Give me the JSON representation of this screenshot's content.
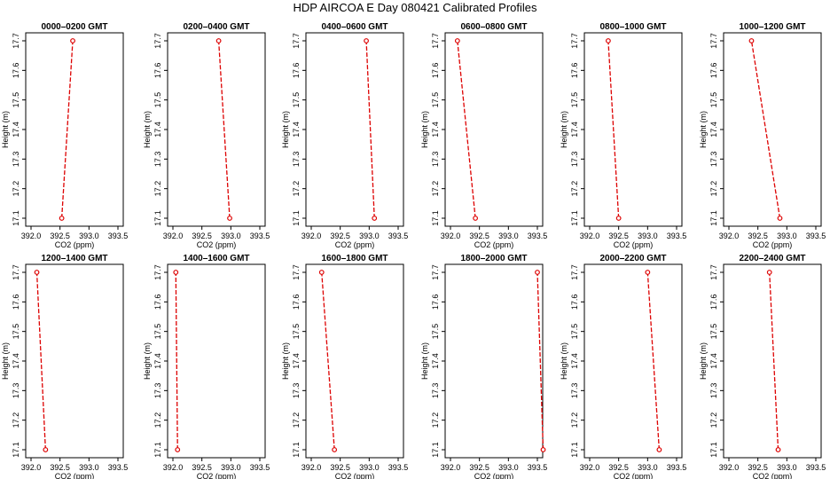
{
  "page": {
    "title": "HDP  AIRCOA E  Day 080421  Calibrated Profiles"
  },
  "colors": {
    "series": "#dd0000",
    "axis": "#000000"
  },
  "chart_data": [
    {
      "type": "line",
      "title": "0000–0200 GMT",
      "xlabel": "CO2 (ppm)",
      "ylabel": "Height (m)",
      "xlim": [
        392.0,
        393.5
      ],
      "ylim": [
        17.1,
        17.7
      ],
      "xticks": [
        "392.0",
        "392.5",
        "393.0",
        "393.5"
      ],
      "yticks": [
        "17.1",
        "17.2",
        "17.3",
        "17.4",
        "17.5",
        "17.6",
        "17.7"
      ],
      "grid": false,
      "x": [
        392.53,
        392.72
      ],
      "y": [
        17.1,
        17.7
      ]
    },
    {
      "type": "line",
      "title": "0200–0400 GMT",
      "xlabel": "CO2 (ppm)",
      "ylabel": "Height (m)",
      "xlim": [
        392.0,
        393.5
      ],
      "ylim": [
        17.1,
        17.7
      ],
      "xticks": [
        "392.0",
        "392.5",
        "393.0",
        "393.5"
      ],
      "yticks": [
        "17.1",
        "17.2",
        "17.3",
        "17.4",
        "17.5",
        "17.6",
        "17.7"
      ],
      "grid": false,
      "x": [
        392.98,
        392.79
      ],
      "y": [
        17.1,
        17.7
      ]
    },
    {
      "type": "line",
      "title": "0400–0600 GMT",
      "xlabel": "CO2 (ppm)",
      "ylabel": "Height (m)",
      "xlim": [
        392.0,
        393.5
      ],
      "ylim": [
        17.1,
        17.7
      ],
      "xticks": [
        "392.0",
        "392.5",
        "393.0",
        "393.5"
      ],
      "yticks": [
        "17.1",
        "17.2",
        "17.3",
        "17.4",
        "17.5",
        "17.6",
        "17.7"
      ],
      "grid": false,
      "x": [
        393.09,
        392.95
      ],
      "y": [
        17.1,
        17.7
      ]
    },
    {
      "type": "line",
      "title": "0600–0800 GMT",
      "xlabel": "CO2 (ppm)",
      "ylabel": "Height (m)",
      "xlim": [
        392.0,
        393.5
      ],
      "ylim": [
        17.1,
        17.7
      ],
      "xticks": [
        "392.0",
        "392.5",
        "393.0",
        "393.5"
      ],
      "yticks": [
        "17.1",
        "17.2",
        "17.3",
        "17.4",
        "17.5",
        "17.6",
        "17.7"
      ],
      "grid": false,
      "x": [
        392.43,
        392.12
      ],
      "y": [
        17.1,
        17.7
      ]
    },
    {
      "type": "line",
      "title": "0800–1000 GMT",
      "xlabel": "CO2 (ppm)",
      "ylabel": "Height (m)",
      "xlim": [
        392.0,
        393.5
      ],
      "ylim": [
        17.1,
        17.7
      ],
      "xticks": [
        "392.0",
        "392.5",
        "393.0",
        "393.5"
      ],
      "yticks": [
        "17.1",
        "17.2",
        "17.3",
        "17.4",
        "17.5",
        "17.6",
        "17.7"
      ],
      "grid": false,
      "x": [
        392.5,
        392.32
      ],
      "y": [
        17.1,
        17.7
      ]
    },
    {
      "type": "line",
      "title": "1000–1200 GMT",
      "xlabel": "CO2 (ppm)",
      "ylabel": "Height (m)",
      "xlim": [
        392.0,
        393.5
      ],
      "ylim": [
        17.1,
        17.7
      ],
      "xticks": [
        "392.0",
        "392.5",
        "393.0",
        "393.5"
      ],
      "yticks": [
        "17.1",
        "17.2",
        "17.3",
        "17.4",
        "17.5",
        "17.6",
        "17.7"
      ],
      "grid": false,
      "x": [
        392.88,
        392.39
      ],
      "y": [
        17.1,
        17.7
      ]
    },
    {
      "type": "line",
      "title": "1200–1400 GMT",
      "xlabel": "CO2 (ppm)",
      "ylabel": "Height (m)",
      "xlim": [
        392.0,
        393.5
      ],
      "ylim": [
        17.1,
        17.7
      ],
      "xticks": [
        "392.0",
        "392.5",
        "393.0",
        "393.5"
      ],
      "yticks": [
        "17.1",
        "17.2",
        "17.3",
        "17.4",
        "17.5",
        "17.6",
        "17.7"
      ],
      "grid": false,
      "x": [
        392.25,
        392.1
      ],
      "y": [
        17.1,
        17.7
      ]
    },
    {
      "type": "line",
      "title": "1400–1600 GMT",
      "xlabel": "CO2 (ppm)",
      "ylabel": "Height (m)",
      "xlim": [
        392.0,
        393.5
      ],
      "ylim": [
        17.1,
        17.7
      ],
      "xticks": [
        "392.0",
        "392.5",
        "393.0",
        "393.5"
      ],
      "yticks": [
        "17.1",
        "17.2",
        "17.3",
        "17.4",
        "17.5",
        "17.6",
        "17.7"
      ],
      "grid": false,
      "x": [
        392.08,
        392.05
      ],
      "y": [
        17.1,
        17.7
      ]
    },
    {
      "type": "line",
      "title": "1600–1800 GMT",
      "xlabel": "CO2 (ppm)",
      "ylabel": "Height (m)",
      "xlim": [
        392.0,
        393.5
      ],
      "ylim": [
        17.1,
        17.7
      ],
      "xticks": [
        "392.0",
        "392.5",
        "393.0",
        "393.5"
      ],
      "yticks": [
        "17.1",
        "17.2",
        "17.3",
        "17.4",
        "17.5",
        "17.6",
        "17.7"
      ],
      "grid": false,
      "x": [
        392.4,
        392.18
      ],
      "y": [
        17.1,
        17.7
      ]
    },
    {
      "type": "line",
      "title": "1800–2000 GMT",
      "xlabel": "CO2 (ppm)",
      "ylabel": "Height (m)",
      "xlim": [
        392.0,
        393.5
      ],
      "ylim": [
        17.1,
        17.7
      ],
      "xticks": [
        "392.0",
        "392.5",
        "393.0",
        "393.5"
      ],
      "yticks": [
        "17.1",
        "17.2",
        "17.3",
        "17.4",
        "17.5",
        "17.6",
        "17.7"
      ],
      "grid": false,
      "x": [
        393.6,
        393.5
      ],
      "y": [
        17.1,
        17.7
      ]
    },
    {
      "type": "line",
      "title": "2000–2200 GMT",
      "xlabel": "CO2 (ppm)",
      "ylabel": "Height (m)",
      "xlim": [
        392.0,
        393.5
      ],
      "ylim": [
        17.1,
        17.7
      ],
      "xticks": [
        "392.0",
        "392.5",
        "393.0",
        "393.5"
      ],
      "yticks": [
        "17.1",
        "17.2",
        "17.3",
        "17.4",
        "17.5",
        "17.6",
        "17.7"
      ],
      "grid": false,
      "x": [
        393.2,
        393.0
      ],
      "y": [
        17.1,
        17.7
      ]
    },
    {
      "type": "line",
      "title": "2200–2400 GMT",
      "xlabel": "CO2 (ppm)",
      "ylabel": "Height (m)",
      "xlim": [
        392.0,
        393.5
      ],
      "ylim": [
        17.1,
        17.7
      ],
      "xticks": [
        "392.0",
        "392.5",
        "393.0",
        "393.5"
      ],
      "yticks": [
        "17.1",
        "17.2",
        "17.3",
        "17.4",
        "17.5",
        "17.6",
        "17.7"
      ],
      "grid": false,
      "x": [
        392.85,
        392.7
      ],
      "y": [
        17.1,
        17.7
      ]
    }
  ]
}
